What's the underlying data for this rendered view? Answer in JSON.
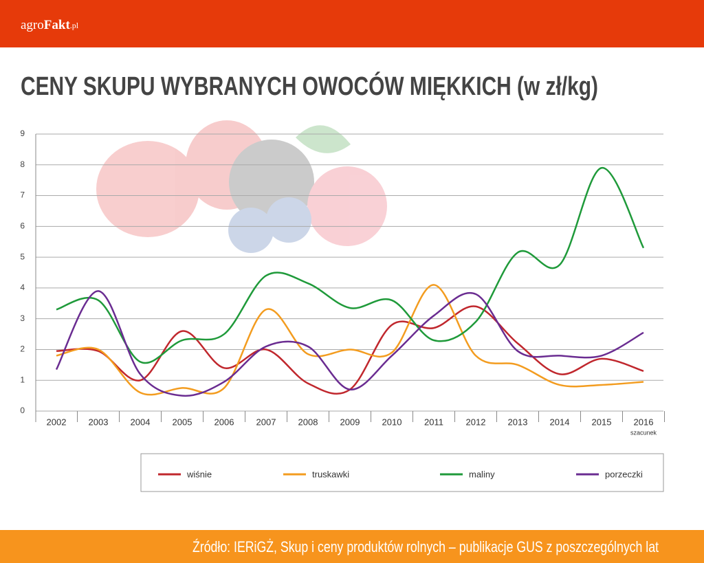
{
  "logo": [
    "agro",
    "Fakt",
    ".pl"
  ],
  "source": "Źródło: IERiGŻ, Skup i ceny produktów rolnych – publikacje GUS z poszczególnych lat",
  "chart_data": {
    "type": "line",
    "title": "CENY SKUPU WYBRANYCH OWOCÓW MIĘKKICH (w zł/kg)",
    "categories": [
      "2002",
      "2003",
      "2004",
      "2005",
      "2006",
      "2007",
      "2008",
      "2009",
      "2010",
      "2011",
      "2012",
      "2013",
      "2014",
      "2015",
      "2016"
    ],
    "annotation": "szacunek",
    "ylim": [
      0,
      9
    ],
    "yticks": [
      0,
      1,
      2,
      3,
      4,
      5,
      6,
      7,
      8,
      9
    ],
    "grid": true,
    "series": [
      {
        "name": "wiśnie",
        "color": "#c0272d",
        "values": [
          1.95,
          1.95,
          1.0,
          2.6,
          1.4,
          2.0,
          0.9,
          0.7,
          2.8,
          2.7,
          3.4,
          2.2,
          1.2,
          1.7,
          1.3
        ]
      },
      {
        "name": "truskawki",
        "color": "#f39c1f",
        "values": [
          1.8,
          2.0,
          0.6,
          0.75,
          0.75,
          3.3,
          1.85,
          2.0,
          1.9,
          4.1,
          1.8,
          1.5,
          0.85,
          0.85,
          0.95
        ]
      },
      {
        "name": "maliny",
        "color": "#1f9a3a",
        "values": [
          3.3,
          3.6,
          1.6,
          2.3,
          2.5,
          4.4,
          4.15,
          3.35,
          3.6,
          2.3,
          2.9,
          5.15,
          4.75,
          7.9,
          5.3
        ]
      },
      {
        "name": "porzeczki",
        "color": "#6a2c91",
        "values": [
          1.35,
          3.9,
          1.2,
          0.5,
          0.95,
          2.1,
          2.1,
          0.7,
          1.8,
          3.1,
          3.8,
          1.95,
          1.8,
          1.8,
          2.55
        ]
      }
    ]
  }
}
